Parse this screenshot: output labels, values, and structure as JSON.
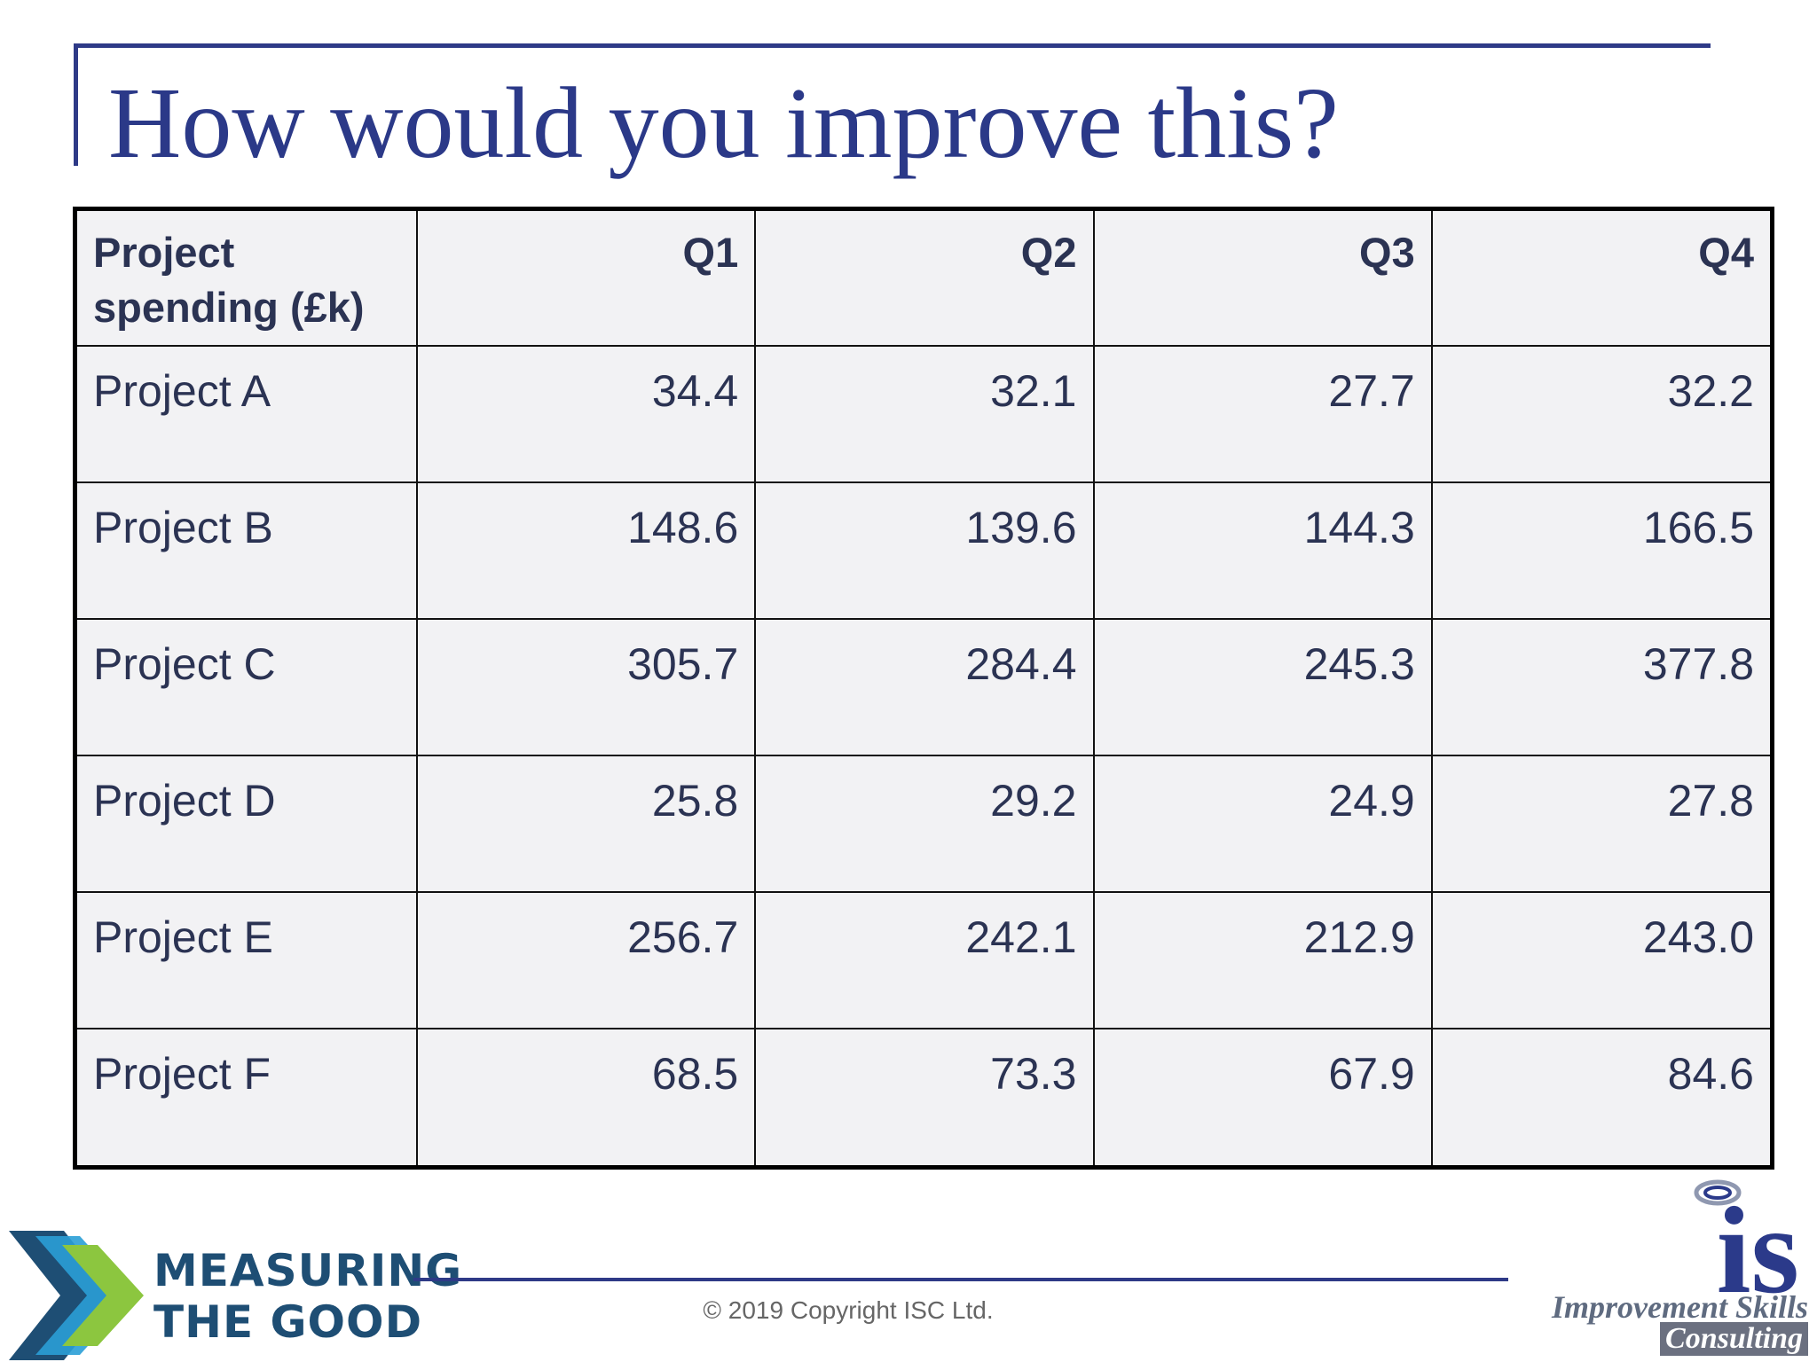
{
  "slide": {
    "title": "How would you improve this?"
  },
  "table": {
    "header_label": "Project spending (£k)",
    "columns": [
      "Q1",
      "Q2",
      "Q3",
      "Q4"
    ],
    "rows": [
      {
        "label": "Project A",
        "values": [
          "34.4",
          "32.1",
          "27.7",
          "32.2"
        ]
      },
      {
        "label": "Project B",
        "values": [
          "148.6",
          "139.6",
          "144.3",
          "166.5"
        ]
      },
      {
        "label": "Project C",
        "values": [
          "305.7",
          "284.4",
          "245.3",
          "377.8"
        ]
      },
      {
        "label": "Project D",
        "values": [
          "25.8",
          "29.2",
          "24.9",
          "27.8"
        ]
      },
      {
        "label": "Project E",
        "values": [
          "256.7",
          "242.1",
          "212.9",
          "243.0"
        ]
      },
      {
        "label": "Project F",
        "values": [
          "68.5",
          "73.3",
          "67.9",
          "84.6"
        ]
      }
    ]
  },
  "footer": {
    "copyright": "© 2019 Copyright ISC Ltd.",
    "left_logo": {
      "line1": "MEASURING",
      "line2": "THE GOOD"
    },
    "right_logo": {
      "mark": "is",
      "name": "Improvement Skills",
      "sub": "Consulting"
    }
  },
  "colors": {
    "title": "#2b3988",
    "table_text": "#2b3353",
    "table_bg": "#f2f2f4",
    "accent_line": "#2e3a87",
    "logo_navy": "#1e4e74",
    "logo_green": "#8cc63f",
    "logo_blue": "#2a9fd6"
  }
}
